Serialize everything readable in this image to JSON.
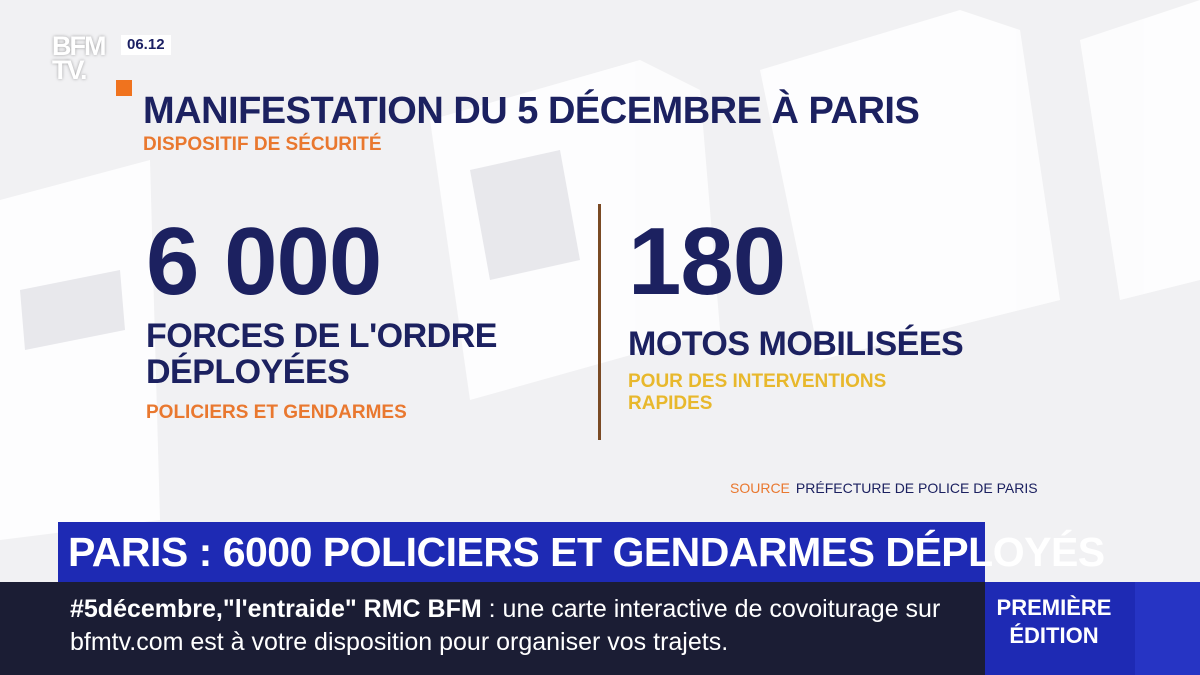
{
  "logo": {
    "text": "BFM TV."
  },
  "clock": "06.12",
  "graphic": {
    "title": "MANIFESTATION DU 5 DÉCEMBRE À PARIS",
    "subtitle": "DISPOSITIF DE SÉCURITÉ",
    "stat_left": {
      "number": "6 000",
      "label_line1": "FORCES DE L'ORDRE",
      "label_line2": "DÉPLOYÉES",
      "sub": "POLICIERS ET GENDARMES"
    },
    "stat_right": {
      "number": "180",
      "label": "MOTOS MOBILISÉES",
      "sub_line1": "POUR DES INTERVENTIONS",
      "sub_line2": "RAPIDES"
    },
    "source_label": "SOURCE",
    "source_value": "PRÉFECTURE DE POLICE DE PARIS"
  },
  "headline": "PARIS : 6000 POLICIERS ET GENDARMES DÉPLOYÉS",
  "ticker": {
    "bold": "#5décembre,\"l'entraide\" RMC BFM",
    "text": " : une carte interactive de covoiturage sur bfmtv.com est à votre disposition pour organiser vos trajets."
  },
  "edition": {
    "line1": "PREMIÈRE",
    "line2": "ÉDITION"
  },
  "colors": {
    "navy": "#1c2160",
    "orange": "#e9782f",
    "yellow": "#e8b82c",
    "brand_blue": "#1e2ab4",
    "ticker_bg": "#1b1d34"
  }
}
